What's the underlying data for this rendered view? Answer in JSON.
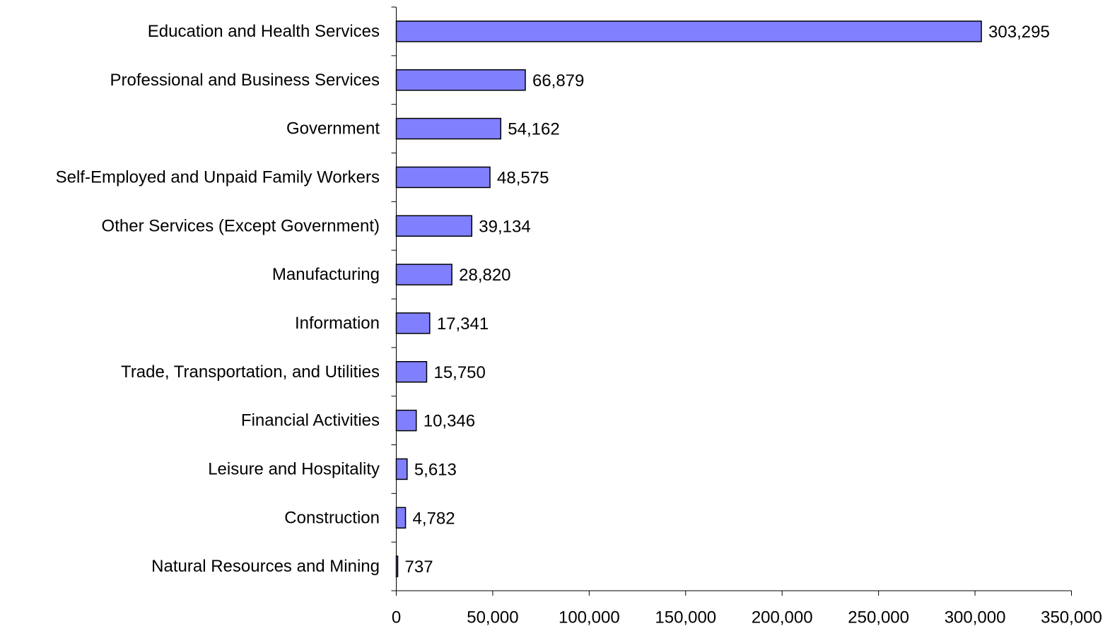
{
  "chart_data": {
    "type": "bar",
    "orientation": "horizontal",
    "title": "",
    "xlabel": "",
    "ylabel": "",
    "categories": [
      "Education and Health Services",
      "Professional and Business Services",
      "Government",
      "Self-Employed and Unpaid Family Workers",
      "Other Services (Except Government)",
      "Manufacturing",
      "Information",
      "Trade, Transportation, and Utilities",
      "Financial Activities",
      "Leisure and Hospitality",
      "Construction",
      "Natural Resources and Mining"
    ],
    "values": [
      303295,
      66879,
      54162,
      48575,
      39134,
      28820,
      17341,
      15750,
      10346,
      5613,
      4782,
      737
    ],
    "value_labels": [
      "303,295",
      "66,879",
      "54,162",
      "48,575",
      "39,134",
      "28,820",
      "17,341",
      "15,750",
      "10,346",
      "5,613",
      "4,782",
      "737"
    ],
    "xlim": [
      0,
      350000
    ],
    "xticks": [
      0,
      50000,
      100000,
      150000,
      200000,
      250000,
      300000,
      350000
    ],
    "xtick_labels": [
      "0",
      "50,000",
      "100,000",
      "150,000",
      "200,000",
      "250,000",
      "300,000",
      "350,000"
    ],
    "bar_color": "#8080ff",
    "bar_edge_color": "#000000",
    "grid": false,
    "legend": "none"
  }
}
